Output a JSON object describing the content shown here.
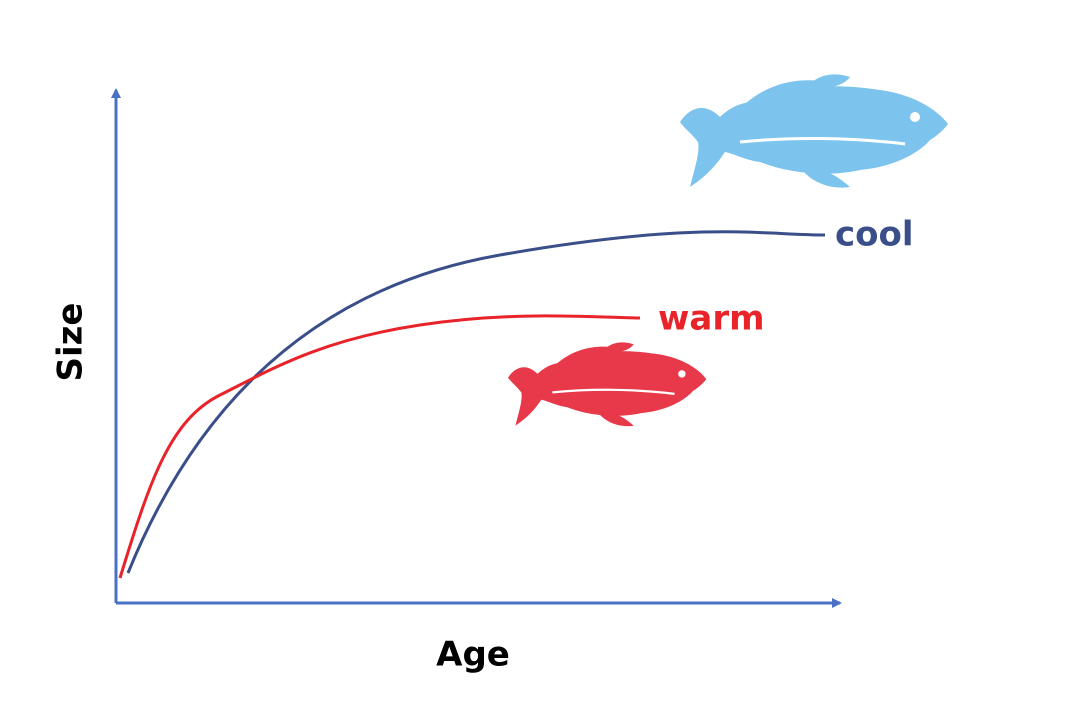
{
  "axes": {
    "y_label": "Size",
    "x_label": "Age"
  },
  "curves": [
    {
      "label": "cool"
    },
    {
      "label": "warm"
    }
  ]
}
